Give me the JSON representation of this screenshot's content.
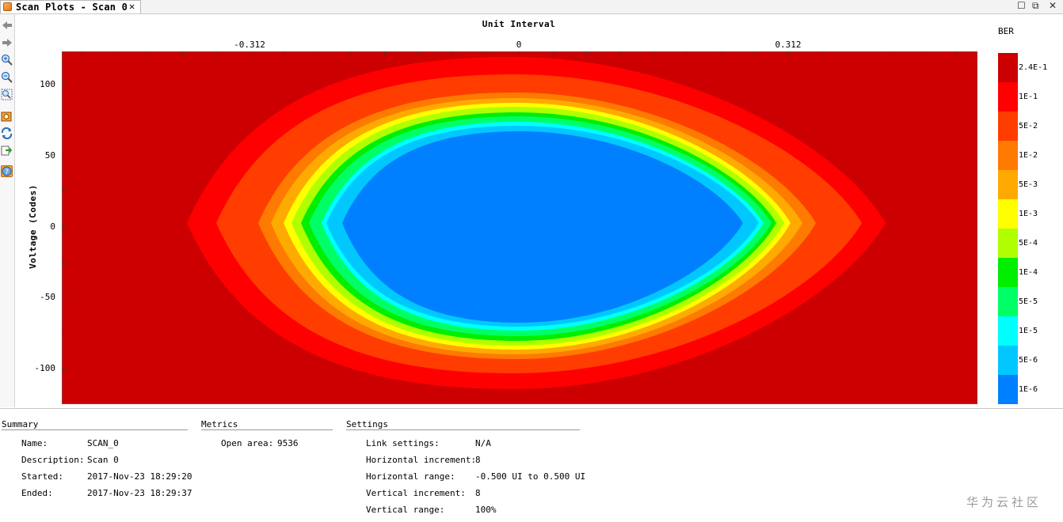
{
  "window": {
    "tab_title": "Scan Plots - Scan 0",
    "tab_close": "✕",
    "controls": [
      "☐",
      "⧉",
      "✕"
    ]
  },
  "toolbar": {
    "icons": [
      "back-icon",
      "forward-icon",
      "zoom-in-icon",
      "zoom-out-icon",
      "zoom-fit-icon",
      "export-image-icon",
      "refresh-icon",
      "export-data-icon",
      "help-icon"
    ]
  },
  "plot": {
    "title": "Unit Interval",
    "ylabel": "Voltage (Codes)",
    "xticks": [
      "-0.312",
      "0",
      "0.312"
    ],
    "yticks": [
      "100",
      "50",
      "0",
      "-50",
      "-100"
    ]
  },
  "colorbar": {
    "title": "BER",
    "labels": [
      "2.4E-1",
      "1E-1",
      "5E-2",
      "1E-2",
      "5E-3",
      "1E-3",
      "5E-4",
      "1E-4",
      "5E-5",
      "1E-5",
      "5E-6",
      "1E-6"
    ],
    "colors": [
      "#cc0000",
      "#ff0000",
      "#ff3d00",
      "#ff7a00",
      "#ffaa00",
      "#ffff00",
      "#b0ff00",
      "#00ee00",
      "#00ff66",
      "#00ffff",
      "#00c8ff",
      "#0080ff"
    ]
  },
  "summary": {
    "title": "Summary",
    "rows": [
      {
        "label": "Name:",
        "value": "SCAN_0"
      },
      {
        "label": "Description:",
        "value": "Scan 0"
      },
      {
        "label": "Started:",
        "value": "2017-Nov-23 18:29:20"
      },
      {
        "label": "Ended:",
        "value": "2017-Nov-23 18:29:37"
      }
    ]
  },
  "metrics": {
    "title": "Metrics",
    "rows": [
      {
        "label": "Open area:",
        "value": "9536"
      }
    ]
  },
  "settings": {
    "title": "Settings",
    "rows": [
      {
        "label": "Link settings:",
        "value": "N/A"
      },
      {
        "label": "Horizontal increment:",
        "value": "8"
      },
      {
        "label": "Horizontal range:",
        "value": "-0.500 UI to 0.500 UI"
      },
      {
        "label": "Vertical increment:",
        "value": "8"
      },
      {
        "label": "Vertical range:",
        "value": "100%"
      }
    ]
  },
  "watermark": "华为云社区"
}
